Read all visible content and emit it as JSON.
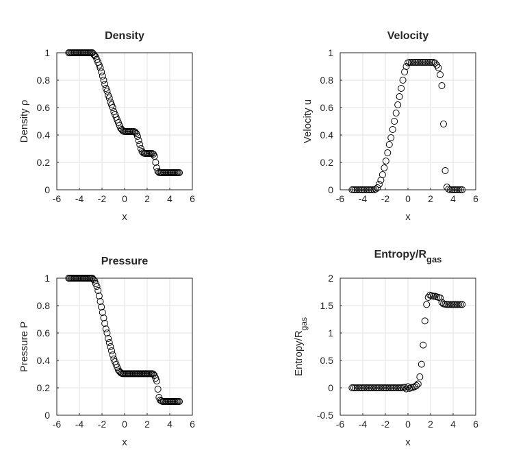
{
  "chart_data": [
    {
      "type": "scatter",
      "title": "Density",
      "xlabel": "x",
      "ylabel": "Density ρ",
      "xlim": [
        -6,
        6
      ],
      "ylim": [
        0,
        1
      ],
      "xticks": [
        "-6",
        "-4",
        "-2",
        "0",
        "2",
        "4",
        "6"
      ],
      "yticks": [
        "0",
        "0.2",
        "0.4",
        "0.6",
        "0.8",
        "1"
      ],
      "grid": true,
      "series": [
        {
          "name": "Density",
          "x": [
            -4.95,
            -4.85,
            -4.75,
            -4.65,
            -4.55,
            -4.45,
            -4.35,
            -4.25,
            -4.15,
            -4.05,
            -3.95,
            -3.85,
            -3.75,
            -3.65,
            -3.55,
            -3.45,
            -3.35,
            -3.25,
            -3.15,
            -3.05,
            -2.95,
            -2.85,
            -2.75,
            -2.65,
            -2.55,
            -2.45,
            -2.35,
            -2.25,
            -2.15,
            -2.05,
            -1.95,
            -1.85,
            -1.75,
            -1.65,
            -1.55,
            -1.45,
            -1.35,
            -1.25,
            -1.15,
            -1.05,
            -0.95,
            -0.85,
            -0.75,
            -0.65,
            -0.55,
            -0.45,
            -0.35,
            -0.25,
            -0.15,
            -0.05,
            0.05,
            0.15,
            0.25,
            0.35,
            0.45,
            0.55,
            0.65,
            0.75,
            0.85,
            0.95,
            1.05,
            1.15,
            1.25,
            1.35,
            1.45,
            1.55,
            1.65,
            1.75,
            1.85,
            1.95,
            2.05,
            2.15,
            2.25,
            2.35,
            2.45,
            2.55,
            2.65,
            2.75,
            2.85,
            2.95,
            3.05,
            3.15,
            3.25,
            3.35,
            3.45,
            3.55,
            3.65,
            3.75,
            3.85,
            3.95,
            4.05,
            4.15,
            4.25,
            4.35,
            4.45,
            4.55,
            4.65,
            4.75,
            4.85
          ],
          "values": [
            1,
            1,
            1,
            1,
            1,
            1,
            1,
            1,
            1,
            1,
            1,
            1,
            1,
            1,
            1,
            1,
            1,
            1,
            1,
            1,
            1,
            1,
            0.99,
            0.98,
            0.97,
            0.95,
            0.93,
            0.91,
            0.89,
            0.86,
            0.83,
            0.8,
            0.77,
            0.74,
            0.72,
            0.69,
            0.67,
            0.64,
            0.62,
            0.6,
            0.57,
            0.55,
            0.53,
            0.51,
            0.49,
            0.47,
            0.45,
            0.44,
            0.43,
            0.426,
            0.425,
            0.425,
            0.425,
            0.425,
            0.425,
            0.425,
            0.425,
            0.425,
            0.425,
            0.42,
            0.41,
            0.39,
            0.36,
            0.33,
            0.3,
            0.28,
            0.27,
            0.266,
            0.265,
            0.265,
            0.265,
            0.265,
            0.265,
            0.265,
            0.265,
            0.26,
            0.245,
            0.2,
            0.16,
            0.135,
            0.126,
            0.125,
            0.125,
            0.125,
            0.125,
            0.125,
            0.125,
            0.125,
            0.125,
            0.125,
            0.125,
            0.125,
            0.125,
            0.125,
            0.125,
            0.125,
            0.125,
            0.125,
            0.125
          ]
        }
      ]
    },
    {
      "type": "scatter",
      "title": "Velocity",
      "xlabel": "x",
      "ylabel": "Velocity u",
      "xlim": [
        -6,
        6
      ],
      "ylim": [
        0,
        1
      ],
      "xticks": [
        "-6",
        "-4",
        "-2",
        "0",
        "2",
        "4",
        "6"
      ],
      "yticks": [
        "0",
        "0.2",
        "0.4",
        "0.6",
        "0.8",
        "1"
      ],
      "grid": true,
      "series": [
        {
          "name": "Velocity",
          "x": [
            -4.95,
            -4.8,
            -4.65,
            -4.5,
            -4.35,
            -4.2,
            -4.05,
            -3.9,
            -3.75,
            -3.6,
            -3.45,
            -3.3,
            -3.15,
            -3,
            -2.85,
            -2.7,
            -2.55,
            -2.4,
            -2.25,
            -2.1,
            -1.95,
            -1.8,
            -1.65,
            -1.5,
            -1.35,
            -1.2,
            -1.05,
            -0.9,
            -0.75,
            -0.6,
            -0.45,
            -0.3,
            -0.15,
            0,
            0.15,
            0.3,
            0.45,
            0.6,
            0.75,
            0.9,
            1.05,
            1.2,
            1.35,
            1.5,
            1.65,
            1.8,
            1.95,
            2.1,
            2.25,
            2.4,
            2.55,
            2.7,
            2.85,
            3,
            3.15,
            3.3,
            3.45,
            3.6,
            3.75,
            3.9,
            4.05,
            4.2,
            4.35,
            4.5,
            4.65,
            4.8
          ],
          "values": [
            0,
            0,
            0,
            0,
            0,
            0,
            0,
            0,
            0,
            0,
            0,
            0,
            0,
            0,
            0.005,
            0.015,
            0.04,
            0.07,
            0.11,
            0.16,
            0.21,
            0.27,
            0.33,
            0.38,
            0.44,
            0.5,
            0.56,
            0.62,
            0.68,
            0.74,
            0.8,
            0.86,
            0.9,
            0.927,
            0.93,
            0.93,
            0.93,
            0.93,
            0.93,
            0.93,
            0.93,
            0.93,
            0.93,
            0.93,
            0.93,
            0.93,
            0.93,
            0.93,
            0.93,
            0.925,
            0.91,
            0.89,
            0.84,
            0.76,
            0.48,
            0.14,
            0.02,
            0.005,
            0,
            0,
            0,
            0,
            0,
            0,
            0,
            0
          ]
        }
      ]
    },
    {
      "type": "scatter",
      "title": "Pressure",
      "xlabel": "x",
      "ylabel": "Pressure P",
      "xlim": [
        -6,
        6
      ],
      "ylim": [
        0,
        1
      ],
      "xticks": [
        "-6",
        "-4",
        "-2",
        "0",
        "2",
        "4",
        "6"
      ],
      "yticks": [
        "0",
        "0.2",
        "0.4",
        "0.6",
        "0.8",
        "1"
      ],
      "grid": true,
      "series": [
        {
          "name": "Pressure",
          "x": [
            -4.95,
            -4.85,
            -4.75,
            -4.65,
            -4.55,
            -4.45,
            -4.35,
            -4.25,
            -4.15,
            -4.05,
            -3.95,
            -3.85,
            -3.75,
            -3.65,
            -3.55,
            -3.45,
            -3.35,
            -3.25,
            -3.15,
            -3.05,
            -2.95,
            -2.85,
            -2.75,
            -2.65,
            -2.55,
            -2.45,
            -2.35,
            -2.25,
            -2.15,
            -2.05,
            -1.95,
            -1.85,
            -1.75,
            -1.65,
            -1.55,
            -1.45,
            -1.35,
            -1.25,
            -1.15,
            -1.05,
            -0.95,
            -0.85,
            -0.75,
            -0.65,
            -0.55,
            -0.45,
            -0.35,
            -0.25,
            -0.15,
            -0.05,
            0.05,
            0.15,
            0.25,
            0.35,
            0.45,
            0.55,
            0.65,
            0.75,
            0.85,
            0.95,
            1.05,
            1.15,
            1.25,
            1.35,
            1.45,
            1.55,
            1.65,
            1.75,
            1.85,
            1.95,
            2.05,
            2.15,
            2.25,
            2.35,
            2.45,
            2.55,
            2.65,
            2.75,
            2.85,
            2.95,
            3.05,
            3.15,
            3.25,
            3.35,
            3.45,
            3.55,
            3.65,
            3.75,
            3.85,
            3.95,
            4.05,
            4.15,
            4.25,
            4.35,
            4.45,
            4.55,
            4.65,
            4.75,
            4.85
          ],
          "values": [
            1,
            1,
            1,
            1,
            1,
            1,
            1,
            1,
            1,
            1,
            1,
            1,
            1,
            1,
            1,
            1,
            1,
            1,
            1,
            1,
            1,
            1,
            0.99,
            0.98,
            0.96,
            0.94,
            0.91,
            0.87,
            0.83,
            0.79,
            0.75,
            0.71,
            0.67,
            0.63,
            0.6,
            0.56,
            0.53,
            0.5,
            0.47,
            0.44,
            0.41,
            0.39,
            0.37,
            0.35,
            0.33,
            0.32,
            0.31,
            0.305,
            0.303,
            0.303,
            0.303,
            0.303,
            0.303,
            0.303,
            0.303,
            0.303,
            0.303,
            0.303,
            0.303,
            0.303,
            0.303,
            0.303,
            0.303,
            0.303,
            0.303,
            0.303,
            0.303,
            0.303,
            0.303,
            0.303,
            0.303,
            0.303,
            0.303,
            0.303,
            0.303,
            0.3,
            0.29,
            0.27,
            0.25,
            0.19,
            0.13,
            0.11,
            0.105,
            0.1,
            0.1,
            0.1,
            0.1,
            0.1,
            0.1,
            0.1,
            0.1,
            0.1,
            0.1,
            0.1,
            0.1,
            0.1,
            0.1,
            0.1,
            0.1
          ]
        }
      ]
    },
    {
      "type": "scatter",
      "title": "Entropy/R",
      "title_sub": "gas",
      "xlabel": "x",
      "ylabel": "Entropy/R",
      "ylabel_sub": "gas",
      "xlim": [
        -6,
        6
      ],
      "ylim": [
        -0.5,
        2
      ],
      "xticks": [
        "-6",
        "-4",
        "-2",
        "0",
        "2",
        "4",
        "6"
      ],
      "yticks": [
        "-0.5",
        "0",
        "0.5",
        "1",
        "1.5",
        "2"
      ],
      "grid": true,
      "series": [
        {
          "name": "Entropy/Rgas",
          "x": [
            -4.95,
            -4.8,
            -4.65,
            -4.5,
            -4.35,
            -4.2,
            -4.05,
            -3.9,
            -3.75,
            -3.6,
            -3.45,
            -3.3,
            -3.15,
            -3,
            -2.85,
            -2.7,
            -2.55,
            -2.4,
            -2.25,
            -2.1,
            -1.95,
            -1.8,
            -1.65,
            -1.5,
            -1.35,
            -1.2,
            -1.05,
            -0.9,
            -0.75,
            -0.6,
            -0.45,
            -0.3,
            -0.15,
            0,
            0.15,
            0.3,
            0.45,
            0.6,
            0.75,
            0.9,
            1.05,
            1.2,
            1.35,
            1.5,
            1.65,
            1.8,
            1.95,
            2.1,
            2.25,
            2.4,
            2.55,
            2.7,
            2.85,
            3,
            3.15,
            3.3,
            3.45,
            3.6,
            3.75,
            3.9,
            4.05,
            4.2,
            4.35,
            4.5,
            4.65,
            4.8
          ],
          "values": [
            0,
            0,
            0,
            0,
            0,
            0,
            0,
            0,
            0,
            0,
            0,
            0,
            0,
            0,
            0,
            0,
            0,
            0,
            0,
            0,
            0,
            0,
            0,
            0,
            0,
            0,
            0,
            0,
            0,
            0,
            0.005,
            0.01,
            -0.02,
            0.02,
            -0.01,
            0.005,
            0.01,
            0.02,
            0.04,
            0.07,
            0.2,
            0.43,
            0.78,
            1.22,
            1.52,
            1.65,
            1.69,
            1.68,
            1.67,
            1.67,
            1.66,
            1.65,
            1.64,
            1.56,
            1.53,
            1.525,
            1.52,
            1.52,
            1.52,
            1.52,
            1.52,
            1.52,
            1.52,
            1.52,
            1.52,
            1.52
          ]
        }
      ]
    }
  ]
}
